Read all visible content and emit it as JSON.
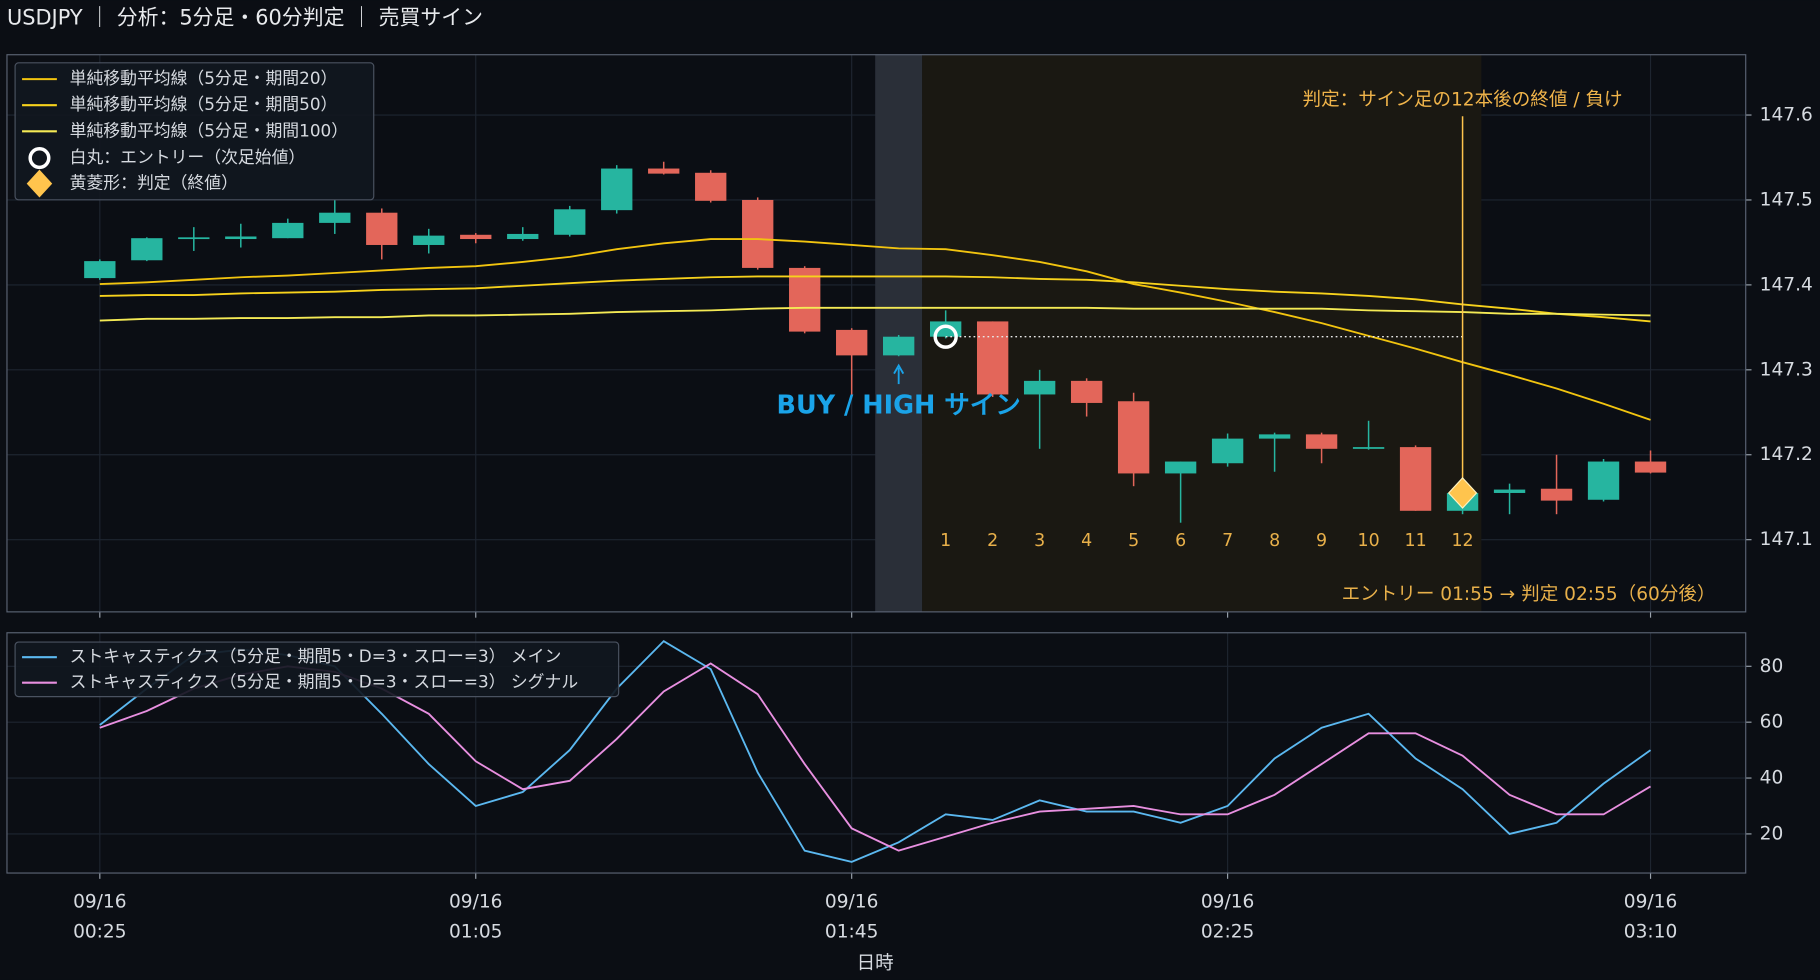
{
  "chart_data": [
    {
      "type": "candlestick",
      "title": "USDJPY ｜ 分析：5分足・60分判定 ｜ 売買サイン",
      "x": [
        "09/16 00:25",
        "09/16 00:30",
        "09/16 00:35",
        "09/16 00:40",
        "09/16 00:45",
        "09/16 00:50",
        "09/16 00:55",
        "09/16 01:00",
        "09/16 01:05",
        "09/16 01:10",
        "09/16 01:15",
        "09/16 01:20",
        "09/16 01:25",
        "09/16 01:30",
        "09/16 01:35",
        "09/16 01:40",
        "09/16 01:45",
        "09/16 01:50",
        "09/16 01:55",
        "09/16 02:00",
        "09/16 02:05",
        "09/16 02:10",
        "09/16 02:15",
        "09/16 02:20",
        "09/16 02:25",
        "09/16 02:30",
        "09/16 02:35",
        "09/16 02:40",
        "09/16 02:45",
        "09/16 02:50",
        "09/16 02:55",
        "09/16 03:00",
        "09/16 03:05",
        "09/16 03:10"
      ],
      "open": [
        147.408,
        147.429,
        147.455,
        147.454,
        147.455,
        147.473,
        147.485,
        147.447,
        147.459,
        147.454,
        147.459,
        147.488,
        147.537,
        147.532,
        147.5,
        147.42,
        147.347,
        147.317,
        147.339,
        147.357,
        147.271,
        147.287,
        147.263,
        147.178,
        147.19,
        147.219,
        147.224,
        147.207,
        147.209,
        147.134,
        147.155,
        147.16,
        147.147,
        147.192
      ],
      "high": [
        147.43,
        147.456,
        147.468,
        147.472,
        147.478,
        147.5,
        147.49,
        147.466,
        147.461,
        147.468,
        147.493,
        147.541,
        147.545,
        147.535,
        147.503,
        147.422,
        147.349,
        147.341,
        147.37,
        147.357,
        147.3,
        147.29,
        147.273,
        147.192,
        147.225,
        147.226,
        147.226,
        147.24,
        147.211,
        147.16,
        147.166,
        147.2,
        147.195,
        147.205
      ],
      "low": [
        147.406,
        147.428,
        147.44,
        147.444,
        147.455,
        147.46,
        147.43,
        147.437,
        147.449,
        147.452,
        147.457,
        147.484,
        147.53,
        147.497,
        147.418,
        147.343,
        147.27,
        147.316,
        147.337,
        147.268,
        147.207,
        147.245,
        147.163,
        147.12,
        147.186,
        147.18,
        147.19,
        147.206,
        147.134,
        147.13,
        147.13,
        147.13,
        147.145,
        147.178
      ],
      "close": [
        147.428,
        147.455,
        147.456,
        147.457,
        147.473,
        147.485,
        147.447,
        147.458,
        147.454,
        147.46,
        147.489,
        147.537,
        147.531,
        147.499,
        147.42,
        147.345,
        147.317,
        147.339,
        147.357,
        147.271,
        147.287,
        147.261,
        147.178,
        147.192,
        147.219,
        147.224,
        147.207,
        147.209,
        147.134,
        147.155,
        147.159,
        147.146,
        147.192,
        147.179
      ],
      "up_color": "#26b5a0",
      "down_color": "#e3665a",
      "series": [
        {
          "name": "単純移動平均線（5分足・期間20）",
          "color": "#f2c40f",
          "values": [
            147.401,
            147.403,
            147.406,
            147.409,
            147.411,
            147.414,
            147.417,
            147.42,
            147.422,
            147.427,
            147.433,
            147.442,
            147.449,
            147.454,
            147.454,
            147.451,
            147.447,
            147.443,
            147.442,
            147.435,
            147.427,
            147.416,
            147.401,
            147.391,
            147.38,
            147.368,
            147.355,
            147.34,
            147.325,
            147.309,
            147.294,
            147.278,
            147.26,
            147.241
          ]
        },
        {
          "name": "単純移動平均線（5分足・期間50）",
          "color": "#f7d21c",
          "values": [
            147.387,
            147.388,
            147.388,
            147.39,
            147.391,
            147.392,
            147.394,
            147.395,
            147.396,
            147.399,
            147.402,
            147.405,
            147.407,
            147.409,
            147.41,
            147.41,
            147.41,
            147.41,
            147.41,
            147.409,
            147.407,
            147.406,
            147.403,
            147.399,
            147.395,
            147.392,
            147.39,
            147.387,
            147.383,
            147.377,
            147.372,
            147.366,
            147.362,
            147.357
          ]
        },
        {
          "name": "単純移動平均線（5分足・期間100）",
          "color": "#f4ea55",
          "values": [
            147.358,
            147.36,
            147.36,
            147.361,
            147.361,
            147.362,
            147.362,
            147.364,
            147.364,
            147.365,
            147.366,
            147.368,
            147.369,
            147.37,
            147.372,
            147.373,
            147.373,
            147.373,
            147.373,
            147.373,
            147.373,
            147.373,
            147.372,
            147.372,
            147.372,
            147.372,
            147.372,
            147.37,
            147.369,
            147.368,
            147.366,
            147.366,
            147.365,
            147.364
          ]
        }
      ],
      "entry": {
        "label": "白丸：エントリー（次足始値）",
        "x": "09/16 01:55",
        "price": 147.339
      },
      "judgment": {
        "label": "黄菱形：判定（終値）",
        "x": "09/16 02:50",
        "price": 147.155,
        "color": "#ffc44d"
      },
      "signal": {
        "label": "BUY / HIGH サイン",
        "x": "09/16 01:50",
        "color": "#1aa3e8"
      },
      "count_labels": [
        1,
        2,
        3,
        4,
        5,
        6,
        7,
        8,
        9,
        10,
        11,
        12
      ],
      "annotations": [
        "判定：サイン足の12本後の終値 / 負け",
        "エントリー 01:55 → 判定 02:55（60分後）"
      ],
      "ylim": [
        147.015,
        147.671
      ],
      "yticks": [
        147.1,
        147.2,
        147.3,
        147.4,
        147.5,
        147.6
      ],
      "grid": true
    },
    {
      "type": "line",
      "xlabel": "日時",
      "x": [
        "09/16 00:25",
        "09/16 00:30",
        "09/16 00:35",
        "09/16 00:40",
        "09/16 00:45",
        "09/16 00:50",
        "09/16 00:55",
        "09/16 01:00",
        "09/16 01:05",
        "09/16 01:10",
        "09/16 01:15",
        "09/16 01:20",
        "09/16 01:25",
        "09/16 01:30",
        "09/16 01:35",
        "09/16 01:40",
        "09/16 01:45",
        "09/16 01:50",
        "09/16 01:55",
        "09/16 02:00",
        "09/16 02:05",
        "09/16 02:10",
        "09/16 02:15",
        "09/16 02:20",
        "09/16 02:25",
        "09/16 02:30",
        "09/16 02:35",
        "09/16 02:40",
        "09/16 02:45",
        "09/16 02:50",
        "09/16 02:55",
        "09/16 03:00",
        "09/16 03:05",
        "09/16 03:10"
      ],
      "series": [
        {
          "name": "ストキャスティクス（5分足・期間5・D=3・スロー=3） メイン",
          "color": "#5bb8f0",
          "values": [
            59,
            72,
            84,
            86,
            84,
            80,
            63,
            45,
            30,
            35,
            50,
            72,
            89,
            79,
            42,
            14,
            10,
            17,
            27,
            25,
            32,
            28,
            28,
            24,
            30,
            47,
            58,
            63,
            47,
            36,
            20,
            24,
            38,
            50
          ]
        },
        {
          "name": "ストキャスティクス（5分足・期間5・D=3・スロー=3） シグナル",
          "color": "#e88fe0",
          "values": [
            58,
            64,
            72,
            77,
            80,
            78,
            72,
            63,
            46,
            36,
            39,
            54,
            71,
            81,
            70,
            45,
            22,
            14,
            19,
            24,
            28,
            29,
            30,
            27,
            27,
            34,
            45,
            56,
            56,
            48,
            34,
            27,
            27,
            37
          ]
        }
      ],
      "ylim": [
        6,
        92
      ],
      "yticks": [
        20,
        40,
        60,
        80
      ],
      "grid": true,
      "xticks": [
        {
          "value": "09/16 00:25",
          "label": [
            "09/16",
            "00:25"
          ]
        },
        {
          "value": "09/16 01:05",
          "label": [
            "09/16",
            "01:05"
          ]
        },
        {
          "value": "09/16 01:45",
          "label": [
            "09/16",
            "01:45"
          ]
        },
        {
          "value": "09/16 02:25",
          "label": [
            "09/16",
            "02:25"
          ]
        },
        {
          "value": "09/16 03:10",
          "label": [
            "09/16",
            "03:10"
          ]
        }
      ]
    }
  ]
}
